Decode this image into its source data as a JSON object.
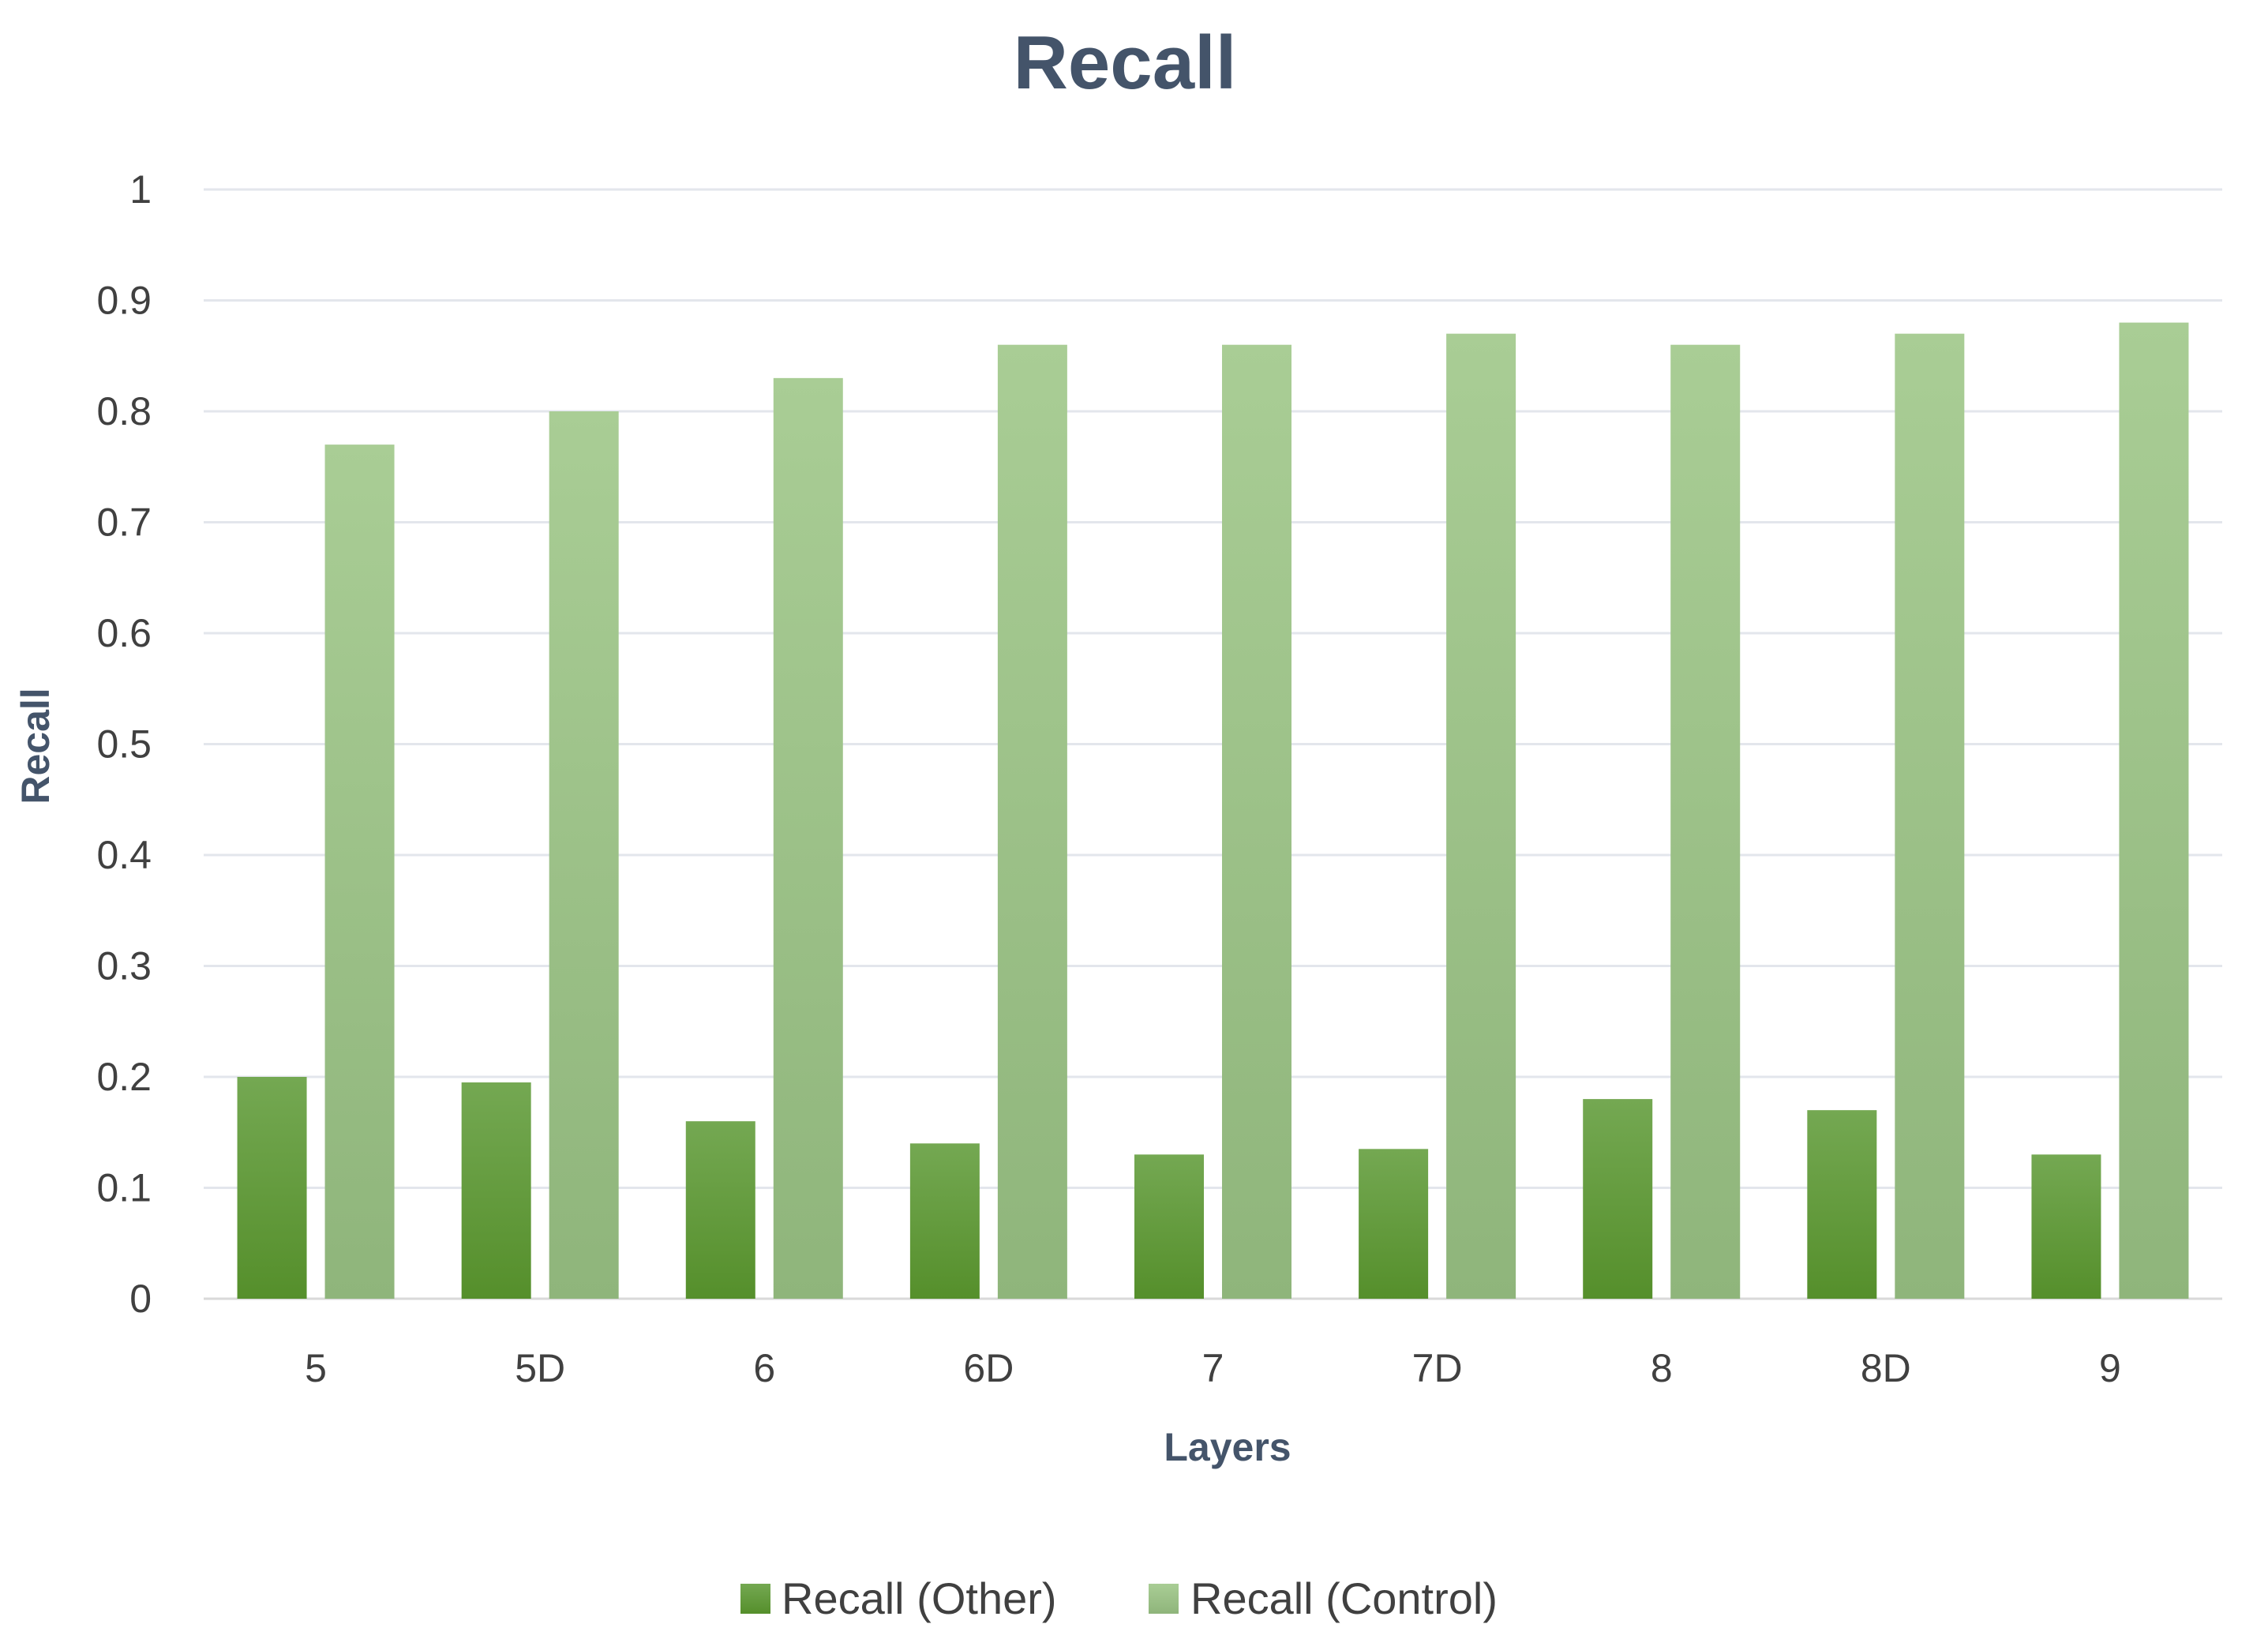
{
  "chart_data": {
    "type": "bar",
    "title": "Recall",
    "xlabel": "Layers",
    "ylabel": "Recall",
    "ylim": [
      0,
      1
    ],
    "yticks": [
      "0",
      "0.1",
      "0.2",
      "0.3",
      "0.4",
      "0.5",
      "0.6",
      "0.7",
      "0.8",
      "0.9",
      "1"
    ],
    "grid": true,
    "legend_position": "bottom",
    "categories": [
      "5",
      "5D",
      "6",
      "6D",
      "7",
      "7D",
      "8",
      "8D",
      "9"
    ],
    "series": [
      {
        "name": "Recall (Other)",
        "color": "#5E9A35",
        "values": [
          0.2,
          0.195,
          0.16,
          0.14,
          0.13,
          0.135,
          0.18,
          0.17,
          0.13
        ]
      },
      {
        "name": "Recall (Control)",
        "color": "#A5C98E",
        "values": [
          0.77,
          0.8,
          0.83,
          0.86,
          0.86,
          0.87,
          0.86,
          0.87,
          0.88
        ]
      }
    ]
  }
}
